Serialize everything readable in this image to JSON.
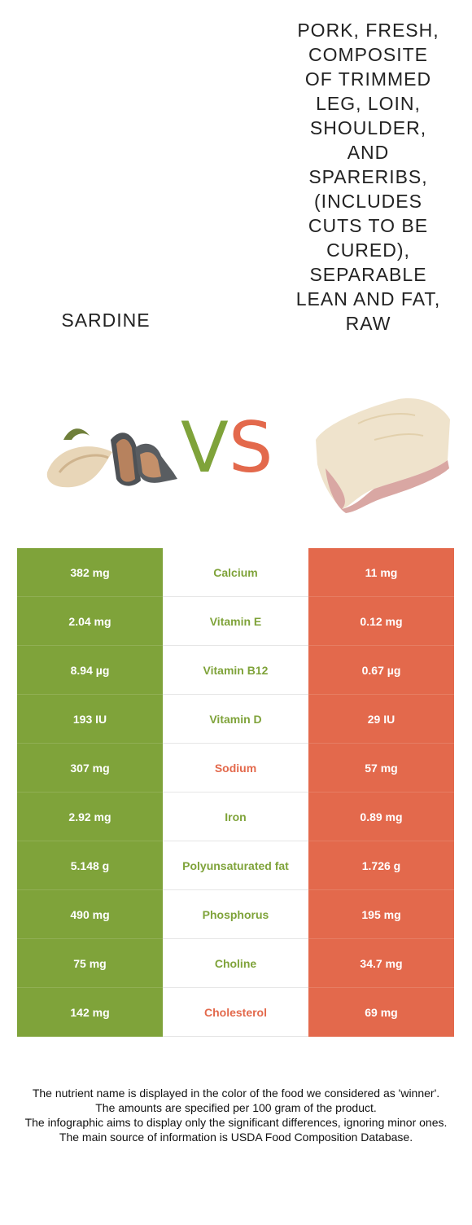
{
  "left_food": {
    "name": "SARDINE",
    "color": "#7fa33a"
  },
  "right_food": {
    "name": "PORK, FRESH, COMPOSITE OF TRIMMED LEG, LOIN, SHOULDER, AND SPARERIBS, (INCLUDES CUTS TO BE CURED), SEPARABLE LEAN AND FAT, RAW",
    "color": "#e3694c"
  },
  "vs": {
    "v": "V",
    "s": "S"
  },
  "rows": [
    {
      "left": "382 mg",
      "nutrient": "Calcium",
      "right": "11 mg",
      "winner": "left"
    },
    {
      "left": "2.04 mg",
      "nutrient": "Vitamin E",
      "right": "0.12 mg",
      "winner": "left"
    },
    {
      "left": "8.94 µg",
      "nutrient": "Vitamin B12",
      "right": "0.67 µg",
      "winner": "left"
    },
    {
      "left": "193 IU",
      "nutrient": "Vitamin D",
      "right": "29 IU",
      "winner": "left"
    },
    {
      "left": "307 mg",
      "nutrient": "Sodium",
      "right": "57 mg",
      "winner": "right"
    },
    {
      "left": "2.92 mg",
      "nutrient": "Iron",
      "right": "0.89 mg",
      "winner": "left"
    },
    {
      "left": "5.148 g",
      "nutrient": "Polyunsaturated fat",
      "right": "1.726 g",
      "winner": "left"
    },
    {
      "left": "490 mg",
      "nutrient": "Phosphorus",
      "right": "195 mg",
      "winner": "left"
    },
    {
      "left": "75 mg",
      "nutrient": "Choline",
      "right": "34.7 mg",
      "winner": "left"
    },
    {
      "left": "142 mg",
      "nutrient": "Cholesterol",
      "right": "69 mg",
      "winner": "right"
    }
  ],
  "footer": [
    "The nutrient name is displayed in the color of the food we considered as 'winner'.",
    "The amounts are specified per 100 gram of the product.",
    "The infographic aims to display only the significant differences, ignoring minor ones.",
    "The main source of information is USDA Food Composition Database."
  ]
}
